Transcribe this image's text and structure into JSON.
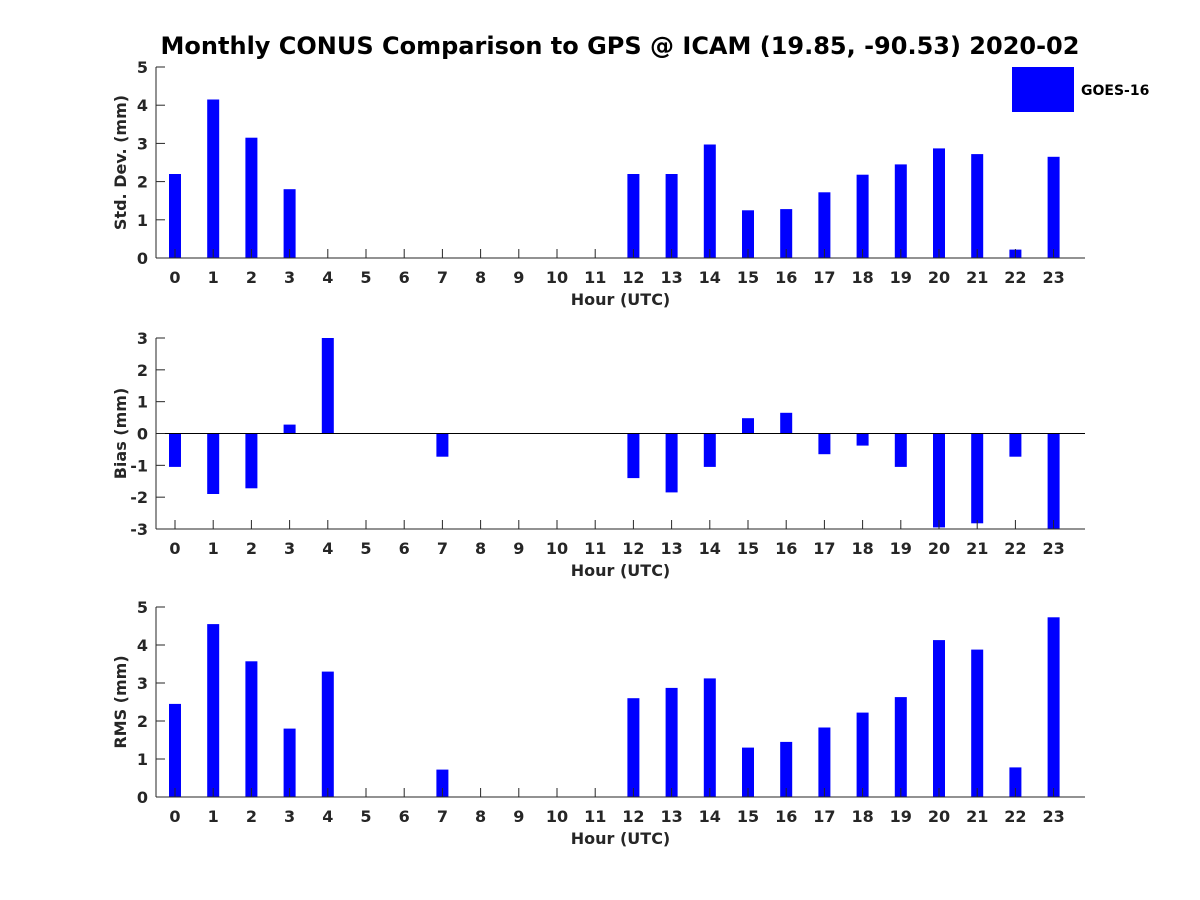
{
  "title": "Monthly CONUS Comparison to GPS @ ICAM (19.85, -90.53) 2020-02",
  "legend": {
    "label": "GOES-16",
    "color": "#0000ff",
    "placement": "top-right"
  },
  "chart_data": [
    {
      "type": "bar",
      "ylabel": "Std. Dev. (mm)",
      "xlabel": "Hour (UTC)",
      "categories": [
        "0",
        "1",
        "2",
        "3",
        "4",
        "5",
        "6",
        "7",
        "8",
        "9",
        "10",
        "11",
        "12",
        "13",
        "14",
        "15",
        "16",
        "17",
        "18",
        "19",
        "20",
        "21",
        "22",
        "23"
      ],
      "x": [
        0,
        1,
        2,
        3,
        4,
        5,
        6,
        7,
        8,
        9,
        10,
        11,
        12,
        13,
        14,
        15,
        16,
        17,
        18,
        19,
        20,
        21,
        22,
        23
      ],
      "series": [
        {
          "name": "GOES-16",
          "values": [
            2.2,
            4.15,
            3.15,
            1.8,
            null,
            null,
            null,
            null,
            null,
            null,
            null,
            null,
            2.2,
            2.2,
            2.97,
            1.25,
            1.28,
            1.72,
            2.18,
            2.45,
            2.87,
            2.72,
            0.22,
            2.65
          ]
        }
      ],
      "ylim": [
        0,
        5
      ],
      "yticks": [
        0,
        1,
        2,
        3,
        4,
        5
      ]
    },
    {
      "type": "bar",
      "ylabel": "Bias (mm)",
      "xlabel": "Hour (UTC)",
      "categories": [
        "0",
        "1",
        "2",
        "3",
        "4",
        "5",
        "6",
        "7",
        "8",
        "9",
        "10",
        "11",
        "12",
        "13",
        "14",
        "15",
        "16",
        "17",
        "18",
        "19",
        "20",
        "21",
        "22",
        "23"
      ],
      "x": [
        0,
        1,
        2,
        3,
        4,
        5,
        6,
        7,
        8,
        9,
        10,
        11,
        12,
        13,
        14,
        15,
        16,
        17,
        18,
        19,
        20,
        21,
        22,
        23
      ],
      "series": [
        {
          "name": "GOES-16",
          "values": [
            -1.05,
            -1.9,
            -1.72,
            0.28,
            3.0,
            null,
            null,
            -0.73,
            null,
            null,
            null,
            null,
            -1.4,
            -1.85,
            -1.05,
            0.48,
            0.65,
            -0.65,
            -0.38,
            -1.05,
            -2.95,
            -2.82,
            -0.73,
            -3.0
          ]
        }
      ],
      "ylim": [
        -3,
        3
      ],
      "yticks": [
        -3,
        -2,
        -1,
        0,
        1,
        2,
        3
      ]
    },
    {
      "type": "bar",
      "ylabel": "RMS (mm)",
      "xlabel": "Hour (UTC)",
      "categories": [
        "0",
        "1",
        "2",
        "3",
        "4",
        "5",
        "6",
        "7",
        "8",
        "9",
        "10",
        "11",
        "12",
        "13",
        "14",
        "15",
        "16",
        "17",
        "18",
        "19",
        "20",
        "21",
        "22",
        "23"
      ],
      "x": [
        0,
        1,
        2,
        3,
        4,
        5,
        6,
        7,
        8,
        9,
        10,
        11,
        12,
        13,
        14,
        15,
        16,
        17,
        18,
        19,
        20,
        21,
        22,
        23
      ],
      "series": [
        {
          "name": "GOES-16",
          "values": [
            2.45,
            4.55,
            3.57,
            1.8,
            3.3,
            null,
            null,
            0.72,
            null,
            null,
            null,
            null,
            2.6,
            2.87,
            3.12,
            1.3,
            1.45,
            1.83,
            2.22,
            2.63,
            4.13,
            3.88,
            0.78,
            4.73
          ]
        }
      ],
      "ylim": [
        0,
        5
      ],
      "yticks": [
        0,
        1,
        2,
        3,
        4,
        5
      ]
    }
  ]
}
